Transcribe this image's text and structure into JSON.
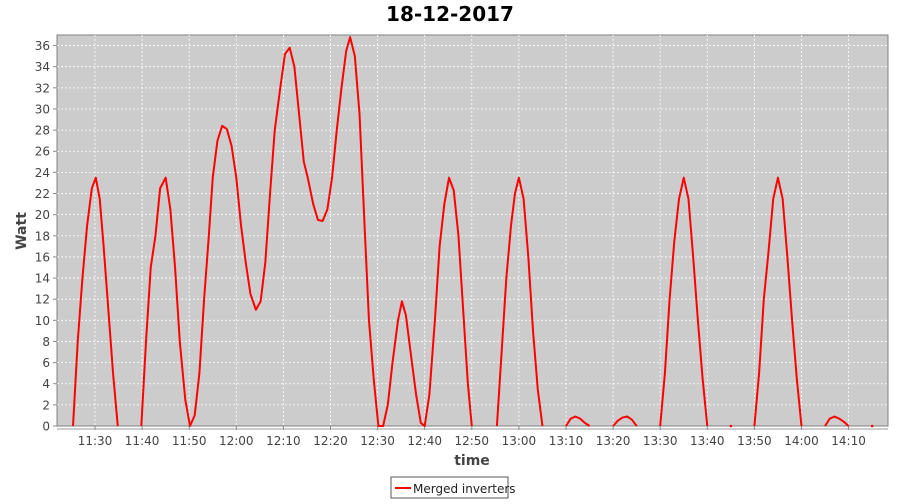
{
  "chart_data": {
    "type": "line",
    "title": "18-12-2017",
    "xlabel": "time",
    "ylabel": "Watt",
    "xlim": [
      "11:21:56",
      "14:18:22"
    ],
    "ylim": [
      0,
      37
    ],
    "grid": true,
    "legend_position": "bottom",
    "x_ticks": [
      "11:30",
      "11:40",
      "11:50",
      "12:00",
      "12:10",
      "12:20",
      "12:30",
      "12:40",
      "12:50",
      "13:00",
      "13:10",
      "13:20",
      "13:30",
      "13:40",
      "13:50",
      "14:00",
      "14:10"
    ],
    "y_ticks": [
      0,
      2,
      4,
      6,
      8,
      10,
      12,
      14,
      16,
      18,
      20,
      22,
      24,
      26,
      28,
      30,
      32,
      34,
      36
    ],
    "colors": {
      "plot_background": "#cccccc",
      "series": "#ff0000",
      "grid": "#ffffff"
    },
    "series": [
      {
        "name": "Merged inverters",
        "points": [
          [
            "11:25:20",
            0
          ],
          [
            "11:26:20",
            8
          ],
          [
            "11:27:20",
            14
          ],
          [
            "11:28:20",
            19
          ],
          [
            "11:29:20",
            22.5
          ],
          [
            "11:30:10",
            23.5
          ],
          [
            "11:31:00",
            21.5
          ],
          [
            "11:31:50",
            17
          ],
          [
            "11:32:50",
            11
          ],
          [
            "11:33:50",
            5
          ],
          [
            "11:34:50",
            0
          ],
          null,
          [
            "11:39:50",
            0
          ],
          [
            "11:40:50",
            8
          ],
          [
            "11:41:50",
            15
          ],
          [
            "11:42:50",
            18
          ],
          [
            "11:43:50",
            22.5
          ],
          [
            "11:45:00",
            23.5
          ],
          [
            "11:46:00",
            20.5
          ],
          [
            "11:47:00",
            15
          ],
          [
            "11:48:00",
            8
          ],
          [
            "11:49:10",
            2.5
          ],
          [
            "11:50:10",
            0
          ],
          [
            "11:51:10",
            1
          ],
          [
            "11:52:10",
            5
          ],
          [
            "11:53:10",
            12
          ],
          [
            "11:54:10",
            18
          ],
          [
            "11:55:00",
            23.5
          ],
          [
            "11:56:00",
            27
          ],
          [
            "11:57:00",
            28.4
          ],
          [
            "11:58:00",
            28.1
          ],
          [
            "11:59:00",
            26.5
          ],
          [
            "12:00:00",
            23.5
          ],
          [
            "12:01:00",
            19
          ],
          [
            "12:02:00",
            15.5
          ],
          [
            "12:03:00",
            12.5
          ],
          [
            "12:04:10",
            11
          ],
          [
            "12:05:10",
            11.8
          ],
          [
            "12:06:10",
            15.5
          ],
          [
            "12:07:10",
            22
          ],
          [
            "12:08:10",
            28
          ],
          [
            "12:09:20",
            32
          ],
          [
            "12:10:20",
            35.2
          ],
          [
            "12:11:20",
            35.8
          ],
          [
            "12:12:20",
            34
          ],
          [
            "12:13:20",
            29.5
          ],
          [
            "12:14:20",
            25
          ],
          [
            "12:15:10",
            23.5
          ],
          [
            "12:16:20",
            21
          ],
          [
            "12:17:20",
            19.5
          ],
          [
            "12:18:20",
            19.4
          ],
          [
            "12:19:20",
            20.5
          ],
          [
            "12:20:20",
            23.5
          ],
          [
            "12:21:20",
            28
          ],
          [
            "12:22:20",
            32
          ],
          [
            "12:23:20",
            35.5
          ],
          [
            "12:24:10",
            36.8
          ],
          [
            "12:25:10",
            35
          ],
          [
            "12:26:10",
            29.5
          ],
          [
            "12:27:20",
            18
          ],
          [
            "12:28:10",
            10
          ],
          [
            "12:29:10",
            4.5
          ],
          [
            "12:30:10",
            0
          ],
          [
            "12:31:10",
            0
          ],
          [
            "12:32:10",
            2
          ],
          [
            "12:33:10",
            6
          ],
          [
            "12:34:20",
            10
          ],
          [
            "12:35:10",
            11.8
          ],
          [
            "12:36:00",
            10.5
          ],
          [
            "12:37:00",
            7
          ],
          [
            "12:38:10",
            3
          ],
          [
            "12:39:10",
            0.3
          ],
          [
            "12:40:00",
            0
          ],
          [
            "12:41:00",
            3
          ],
          [
            "12:42:10",
            10
          ],
          [
            "12:43:10",
            17
          ],
          [
            "12:44:10",
            21
          ],
          [
            "12:45:10",
            23.5
          ],
          [
            "12:46:10",
            22.3
          ],
          [
            "12:47:10",
            18
          ],
          [
            "12:48:10",
            11
          ],
          [
            "12:49:10",
            4
          ],
          [
            "12:50:00",
            0
          ],
          null,
          [
            "12:55:20",
            0
          ],
          [
            "12:56:20",
            7
          ],
          [
            "12:57:20",
            14
          ],
          [
            "12:58:20",
            19
          ],
          [
            "12:59:10",
            22
          ],
          [
            "13:00:00",
            23.5
          ],
          [
            "13:01:00",
            21.5
          ],
          [
            "13:02:00",
            16
          ],
          [
            "13:03:00",
            9
          ],
          [
            "13:04:00",
            3.5
          ],
          [
            "13:05:00",
            0
          ],
          null,
          [
            "13:10:00",
            0
          ],
          [
            "13:11:00",
            0.7
          ],
          [
            "13:12:00",
            0.9
          ],
          [
            "13:13:00",
            0.7
          ],
          [
            "13:14:00",
            0.3
          ],
          [
            "13:15:00",
            0
          ],
          null,
          [
            "13:20:00",
            0
          ],
          [
            "13:21:00",
            0.5
          ],
          [
            "13:22:00",
            0.8
          ],
          [
            "13:23:00",
            0.9
          ],
          [
            "13:24:00",
            0.6
          ],
          [
            "13:25:00",
            0
          ],
          null,
          [
            "13:30:00",
            0
          ],
          [
            "13:31:00",
            5
          ],
          [
            "13:32:00",
            12
          ],
          [
            "13:33:00",
            17.5
          ],
          [
            "13:34:00",
            21.5
          ],
          [
            "13:35:00",
            23.5
          ],
          [
            "13:36:00",
            21.5
          ],
          [
            "13:37:00",
            16
          ],
          [
            "13:38:00",
            10
          ],
          [
            "13:39:00",
            4.5
          ],
          [
            "13:40:00",
            0
          ],
          null,
          [
            "13:45:00",
            0
          ],
          null,
          [
            "13:50:00",
            0
          ],
          [
            "13:51:00",
            5
          ],
          [
            "13:52:00",
            12
          ],
          [
            "13:53:00",
            16.5
          ],
          [
            "13:54:00",
            21.5
          ],
          [
            "13:55:00",
            23.5
          ],
          [
            "13:56:00",
            21.5
          ],
          [
            "13:57:00",
            16
          ],
          [
            "13:58:00",
            10
          ],
          [
            "13:59:00",
            4.5
          ],
          [
            "14:00:00",
            0
          ],
          null,
          [
            "14:05:00",
            0
          ],
          [
            "14:06:00",
            0.7
          ],
          [
            "14:07:00",
            0.9
          ],
          [
            "14:08:00",
            0.7
          ],
          [
            "14:09:00",
            0.4
          ],
          [
            "14:10:00",
            0
          ],
          null,
          [
            "14:15:00",
            0
          ]
        ]
      }
    ]
  }
}
